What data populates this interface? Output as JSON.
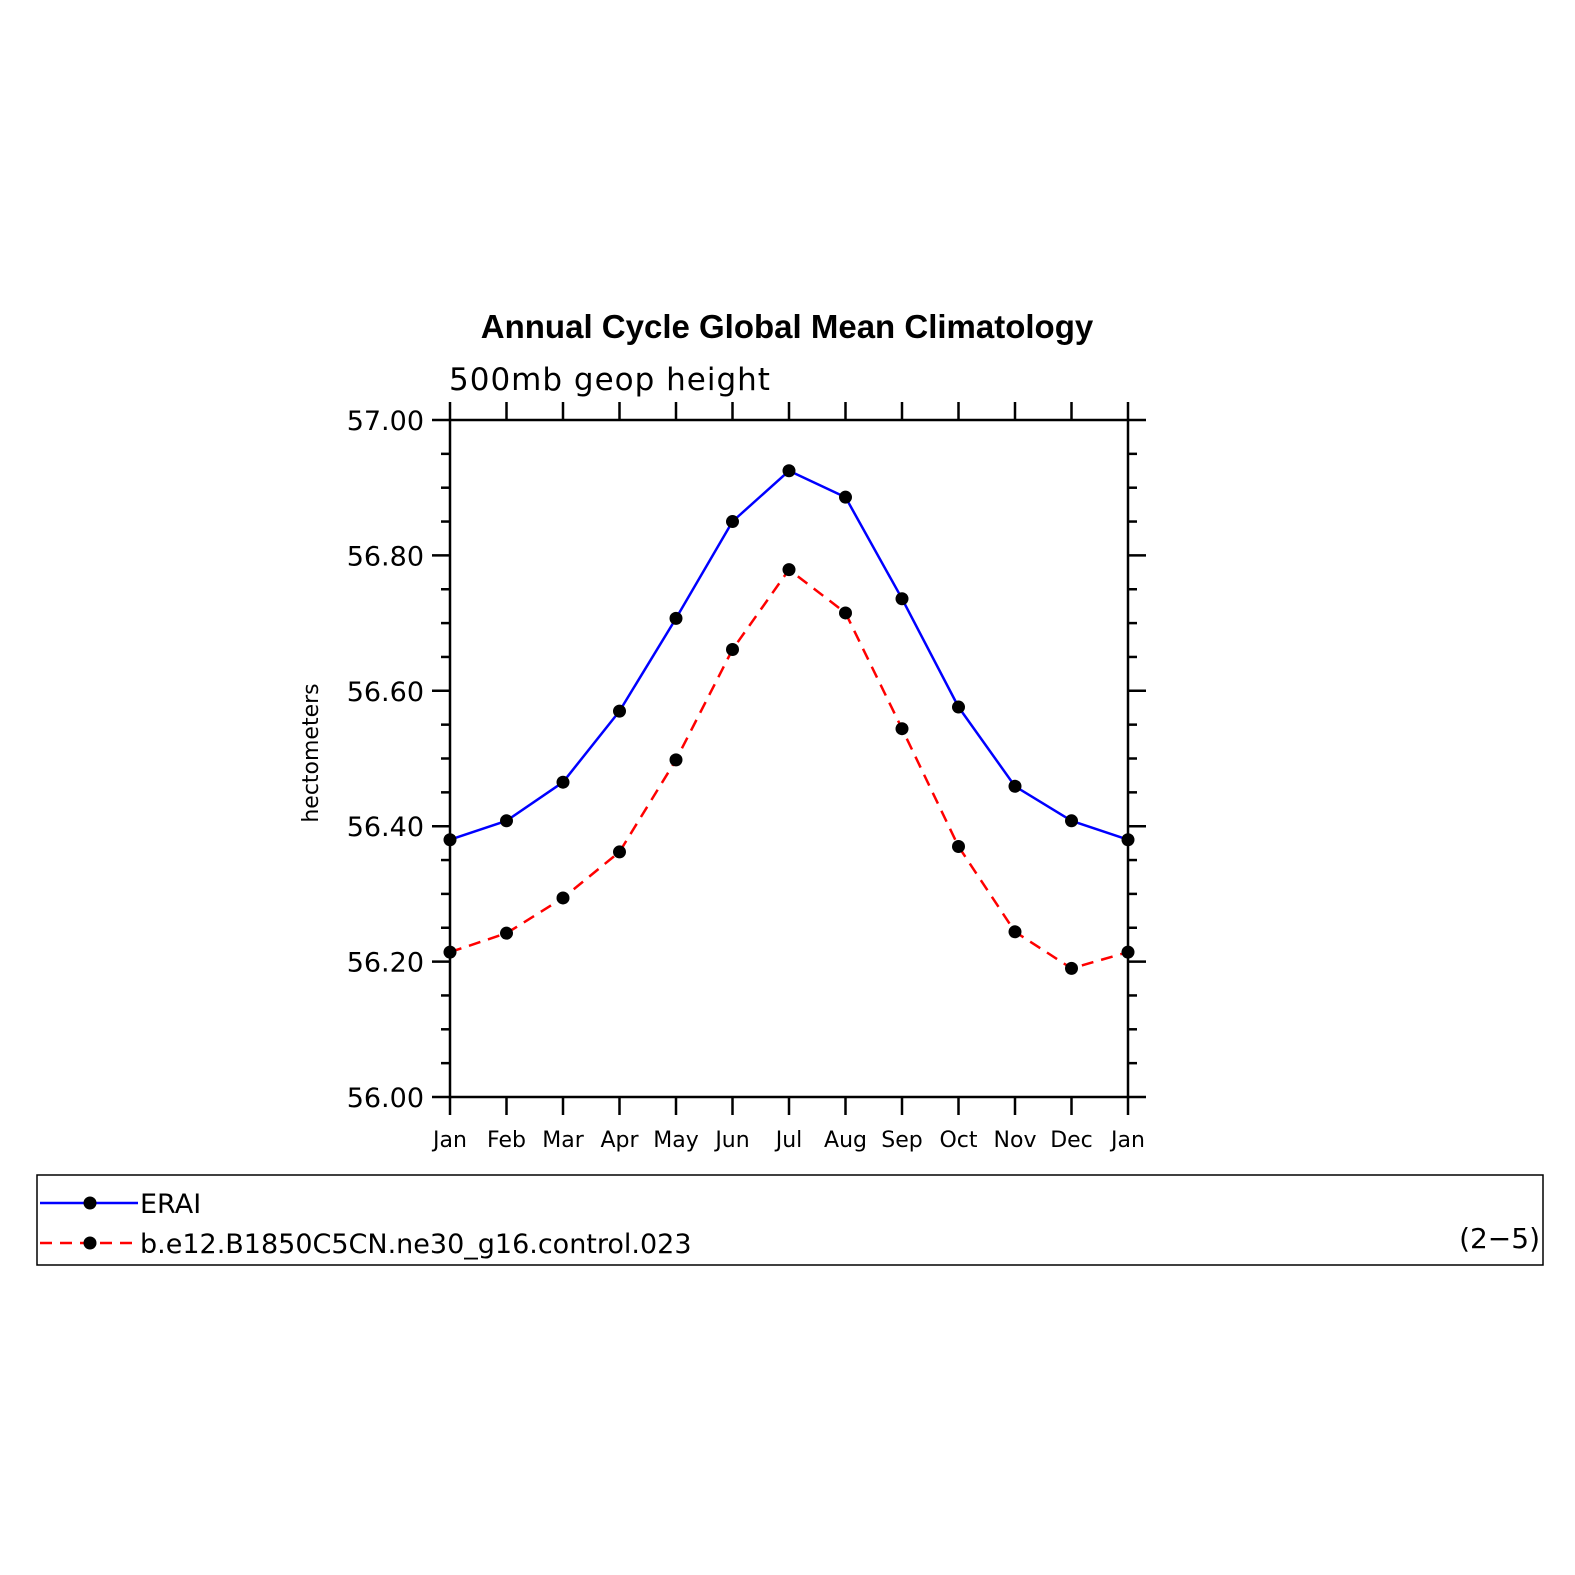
{
  "chart_data": {
    "type": "line",
    "title": "Annual Cycle Global Mean Climatology",
    "subtitle": "500mb geop height",
    "ylabel": "hectometers",
    "xlabel": "",
    "categories": [
      "Jan",
      "Feb",
      "Mar",
      "Apr",
      "May",
      "Jun",
      "Jul",
      "Aug",
      "Sep",
      "Oct",
      "Nov",
      "Dec",
      "Jan"
    ],
    "ylim": [
      56.0,
      57.0
    ],
    "yticks": [
      56.0,
      56.2,
      56.4,
      56.6,
      56.8,
      57.0
    ],
    "ytick_labels": [
      "56.00",
      "56.20",
      "56.40",
      "56.60",
      "56.80",
      "57.00"
    ],
    "grid": false,
    "series": [
      {
        "name": "ERAI",
        "color": "#0000ff",
        "style": "solid",
        "marker": "filled-circle",
        "values": [
          56.38,
          56.408,
          56.465,
          56.57,
          56.707,
          56.85,
          56.925,
          56.886,
          56.736,
          56.576,
          56.459,
          56.408,
          56.38
        ]
      },
      {
        "name": "b.e12.B1850C5CN.ne30_g16.control.023",
        "color": "#ff0000",
        "style": "dashed",
        "marker": "filled-circle",
        "values": [
          56.214,
          56.242,
          56.294,
          56.362,
          56.498,
          56.661,
          56.779,
          56.715,
          56.544,
          56.37,
          56.244,
          56.19,
          56.214
        ]
      }
    ],
    "legend": {
      "placement": "bottom",
      "panel_label": "(2−5)"
    }
  }
}
